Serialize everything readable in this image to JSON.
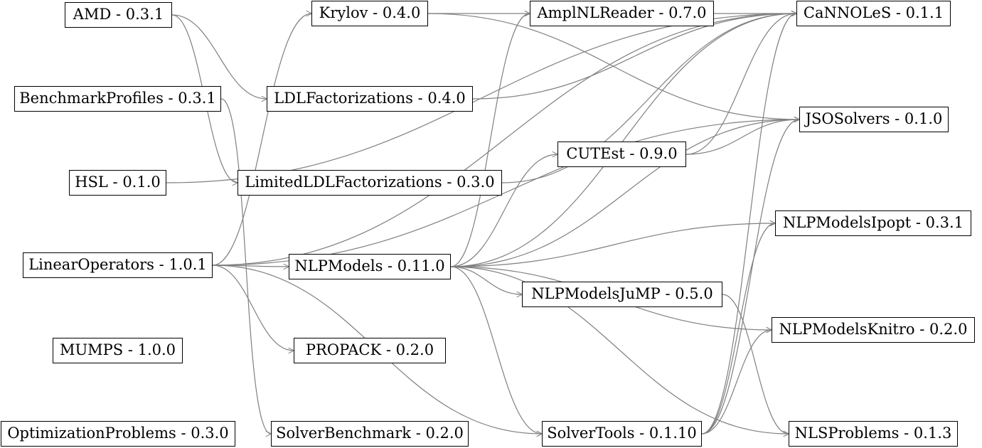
{
  "nodes": [
    {
      "id": "amd",
      "label": "AMD - 0.3.1"
    },
    {
      "id": "benchmarkprofiles",
      "label": "BenchmarkProfiles - 0.3.1"
    },
    {
      "id": "hsl",
      "label": "HSL - 0.1.0"
    },
    {
      "id": "linearoperators",
      "label": "LinearOperators - 1.0.1"
    },
    {
      "id": "mumps",
      "label": "MUMPS - 1.0.0"
    },
    {
      "id": "optimizationproblems",
      "label": "OptimizationProblems - 0.3.0"
    },
    {
      "id": "krylov",
      "label": "Krylov - 0.4.0"
    },
    {
      "id": "ldlfactorizations",
      "label": "LDLFactorizations - 0.4.0"
    },
    {
      "id": "limitedldl",
      "label": "LimitedLDLFactorizations - 0.3.0"
    },
    {
      "id": "nlpmodels",
      "label": "NLPModels - 0.11.0"
    },
    {
      "id": "propack",
      "label": "PROPACK - 0.2.0"
    },
    {
      "id": "solverbenchmark",
      "label": "SolverBenchmark - 0.2.0"
    },
    {
      "id": "amplnlreader",
      "label": "AmplNLReader - 0.7.0"
    },
    {
      "id": "cutest",
      "label": "CUTEst - 0.9.0"
    },
    {
      "id": "nlpmodelsjump",
      "label": "NLPModelsJuMP - 0.5.0"
    },
    {
      "id": "solvertools",
      "label": "SolverTools - 0.1.10"
    },
    {
      "id": "cannoles",
      "label": "CaNNOLeS - 0.1.1"
    },
    {
      "id": "jsosolvers",
      "label": "JSOSolvers - 0.1.0"
    },
    {
      "id": "nlpmodelsipopt",
      "label": "NLPModelsIpopt - 0.3.1"
    },
    {
      "id": "nlpmodelsknitro",
      "label": "NLPModelsKnitro - 0.2.0"
    },
    {
      "id": "nlsproblems",
      "label": "NLSProblems - 0.1.3"
    }
  ],
  "edges": [
    {
      "from": "amd",
      "to": "ldlfactorizations"
    },
    {
      "from": "amd",
      "to": "limitedldl"
    },
    {
      "from": "benchmarkprofiles",
      "to": "solverbenchmark"
    },
    {
      "from": "hsl",
      "to": "cannoles"
    },
    {
      "from": "linearoperators",
      "to": "krylov"
    },
    {
      "from": "linearoperators",
      "to": "nlpmodels"
    },
    {
      "from": "linearoperators",
      "to": "propack"
    },
    {
      "from": "linearoperators",
      "to": "cannoles"
    },
    {
      "from": "linearoperators",
      "to": "jsosolvers"
    },
    {
      "from": "linearoperators",
      "to": "solvertools"
    },
    {
      "from": "krylov",
      "to": "amplnlreader"
    },
    {
      "from": "krylov",
      "to": "jsosolvers"
    },
    {
      "from": "ldlfactorizations",
      "to": "cannoles"
    },
    {
      "from": "limitedldl",
      "to": "cannoles"
    },
    {
      "from": "nlpmodels",
      "to": "amplnlreader"
    },
    {
      "from": "nlpmodels",
      "to": "cutest"
    },
    {
      "from": "nlpmodels",
      "to": "nlpmodelsjump"
    },
    {
      "from": "nlpmodels",
      "to": "solvertools"
    },
    {
      "from": "nlpmodels",
      "to": "cannoles"
    },
    {
      "from": "nlpmodels",
      "to": "jsosolvers"
    },
    {
      "from": "nlpmodels",
      "to": "nlpmodelsipopt"
    },
    {
      "from": "nlpmodels",
      "to": "nlpmodelsknitro"
    },
    {
      "from": "nlpmodels",
      "to": "nlsproblems"
    },
    {
      "from": "amplnlreader",
      "to": "cannoles"
    },
    {
      "from": "cutest",
      "to": "cannoles"
    },
    {
      "from": "cutest",
      "to": "jsosolvers"
    },
    {
      "from": "nlpmodelsjump",
      "to": "nlsproblems"
    },
    {
      "from": "solvertools",
      "to": "cannoles"
    },
    {
      "from": "solvertools",
      "to": "jsosolvers"
    },
    {
      "from": "solvertools",
      "to": "nlpmodelsipopt"
    },
    {
      "from": "solvertools",
      "to": "nlpmodelsknitro"
    }
  ]
}
